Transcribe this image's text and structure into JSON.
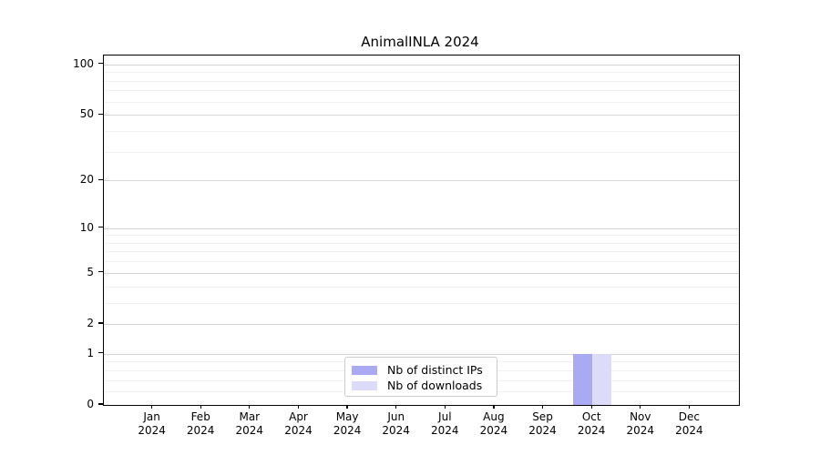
{
  "chart_data": {
    "type": "bar",
    "title": "AnimalINLA 2024",
    "categories": [
      "Jan 2024",
      "Feb 2024",
      "Mar 2024",
      "Apr 2024",
      "May 2024",
      "Jun 2024",
      "Jul 2024",
      "Aug 2024",
      "Sep 2024",
      "Oct 2024",
      "Nov 2024",
      "Dec 2024"
    ],
    "series": [
      {
        "name": "Nb of distinct IPs",
        "color": "#a9a9f4",
        "values": [
          0,
          0,
          0,
          0,
          0,
          0,
          0,
          0,
          0,
          1,
          0,
          0
        ]
      },
      {
        "name": "Nb of downloads",
        "color": "#dcdcfa",
        "values": [
          0,
          0,
          0,
          0,
          0,
          0,
          0,
          0,
          0,
          1,
          0,
          0
        ]
      }
    ],
    "xlabel": "",
    "ylabel": "",
    "y_scale": "log1p",
    "y_ticks": [
      0,
      1,
      2,
      5,
      10,
      20,
      50,
      100
    ],
    "y_minor_ticks": [
      0.2,
      0.4,
      0.6,
      0.8,
      3,
      4,
      6,
      7,
      8,
      9,
      30,
      40,
      60,
      70,
      80,
      90
    ],
    "ylim": [
      0,
      113
    ],
    "grid": "horizontal",
    "legend_position": "bottom-center"
  },
  "colors": {
    "background": "#ffffff",
    "axis": "#000000",
    "text": "#000000",
    "grid_major": "#d4d4d4",
    "grid_minor": "#f1f1f1",
    "legend_border": "#cccccc",
    "bar_distinct_ips": "#a9a9f4",
    "bar_downloads": "#dcdcfa"
  }
}
